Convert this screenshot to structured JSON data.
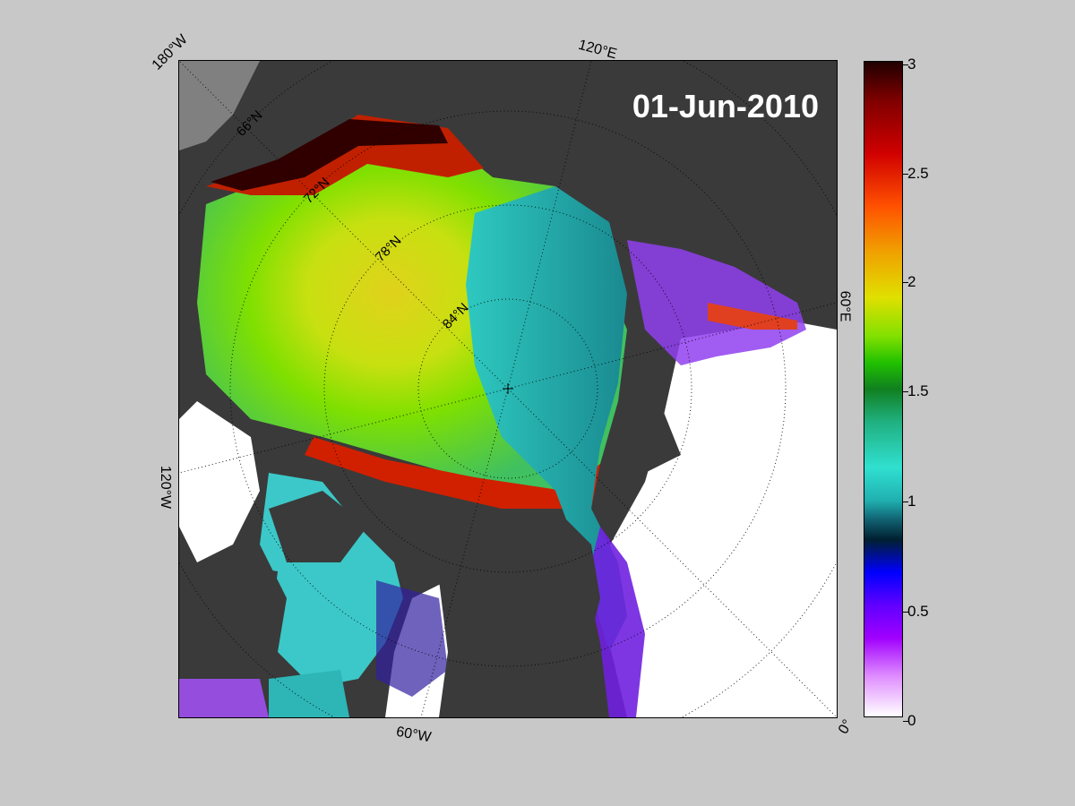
{
  "map": {
    "date": "01-Jun-2010",
    "edge_labels": {
      "top_left": "180°W",
      "top": "120°E",
      "right": "60°E",
      "bottom_right": "0°",
      "bottom": "60°W",
      "left": "120°W"
    },
    "latitude_labels": [
      "66°N",
      "72°N",
      "78°N",
      "84°N"
    ],
    "colors": {
      "background": "#c8c8c8",
      "land": "#3a3a3a",
      "open_water": "#ffffff"
    }
  },
  "colorbar": {
    "min": 0,
    "max": 3,
    "tick_labels": [
      "3",
      "2.5",
      "2",
      "1.5",
      "1",
      "0.5",
      "0"
    ]
  }
}
